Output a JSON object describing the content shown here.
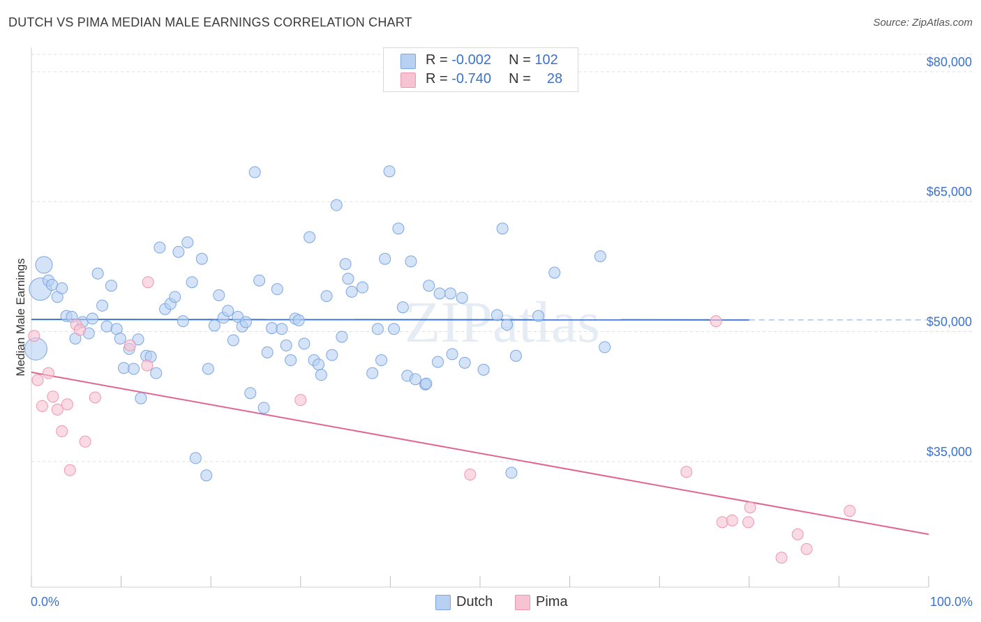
{
  "header": {
    "title": "DUTCH VS PIMA MEDIAN MALE EARNINGS CORRELATION CHART",
    "source": "Source: ZipAtlas.com"
  },
  "legend": {
    "dutch": {
      "r_label": "R =",
      "r_value": "-0.002",
      "n_label": "N =",
      "n_value": "102"
    },
    "pima": {
      "r_label": "R =",
      "r_value": "-0.740",
      "n_label": "N =",
      "n_value": "28"
    }
  },
  "bottom_legend": {
    "dutch": "Dutch",
    "pima": "Pima"
  },
  "watermark": "ZIPatlas",
  "colors": {
    "dutch_fill": "#b8d0f2",
    "dutch_stroke": "#7aa6e3",
    "dutch_line": "#3b72c9",
    "pima_fill": "#f7c3d2",
    "pima_stroke": "#ee95b1",
    "pima_line": "#e0658f",
    "axis_label": "#3b72c9",
    "grid": "#dddddd"
  },
  "chart_data": {
    "type": "scatter",
    "title": "DUTCH VS PIMA MEDIAN MALE EARNINGS CORRELATION CHART",
    "xlabel": "",
    "ylabel": "Median Male Earnings",
    "x_tick_labels": [
      "0.0%",
      "100.0%"
    ],
    "y_tick_labels": [
      "$80,000",
      "$65,000",
      "$50,000",
      "$35,000"
    ],
    "y_ticks": [
      80000,
      65000,
      50000,
      35000
    ],
    "xlim": [
      0,
      100
    ],
    "ylim": [
      20500,
      82000
    ],
    "grid": true,
    "legend_position": "top-center",
    "series": [
      {
        "name": "Dutch",
        "r": -0.002,
        "n": 102,
        "trend": {
          "x": [
            0,
            80
          ],
          "y": [
            51400,
            51350
          ],
          "dashed_extension_to_x": 100
        },
        "points": [
          [
            1.4,
            57700,
            2
          ],
          [
            1.0,
            54900,
            3
          ],
          [
            0.5,
            48000,
            3
          ],
          [
            1.9,
            55900,
            1
          ],
          [
            2.3,
            55400,
            1
          ],
          [
            2.9,
            54000,
            1
          ],
          [
            3.4,
            55000,
            1
          ],
          [
            3.9,
            51800,
            1
          ],
          [
            4.5,
            51700,
            1
          ],
          [
            4.9,
            49200,
            1
          ],
          [
            5.7,
            51100,
            1
          ],
          [
            6.4,
            49800,
            1
          ],
          [
            6.8,
            51500,
            1
          ],
          [
            7.4,
            56700,
            1
          ],
          [
            7.9,
            53000,
            1
          ],
          [
            8.4,
            50600,
            1
          ],
          [
            8.9,
            55300,
            1
          ],
          [
            9.5,
            50300,
            1
          ],
          [
            9.9,
            49200,
            1
          ],
          [
            10.3,
            45800,
            1
          ],
          [
            10.9,
            48000,
            1
          ],
          [
            11.4,
            45700,
            1
          ],
          [
            11.9,
            49100,
            1
          ],
          [
            12.2,
            42300,
            1
          ],
          [
            12.8,
            47200,
            1
          ],
          [
            13.3,
            47100,
            1
          ],
          [
            13.9,
            45200,
            1
          ],
          [
            14.3,
            59700,
            1
          ],
          [
            14.9,
            52600,
            1
          ],
          [
            15.5,
            53200,
            1
          ],
          [
            16.0,
            54000,
            1
          ],
          [
            16.4,
            59200,
            1
          ],
          [
            16.9,
            51200,
            1
          ],
          [
            17.4,
            60300,
            1
          ],
          [
            17.9,
            55700,
            1
          ],
          [
            18.3,
            35400,
            1
          ],
          [
            19.0,
            58400,
            1
          ],
          [
            19.5,
            33400,
            1
          ],
          [
            19.7,
            45700,
            1
          ],
          [
            20.4,
            50700,
            1
          ],
          [
            20.9,
            54200,
            1
          ],
          [
            21.4,
            51600,
            1
          ],
          [
            21.9,
            52400,
            1
          ],
          [
            22.5,
            49000,
            1
          ],
          [
            23.0,
            51700,
            1
          ],
          [
            23.5,
            50600,
            1
          ],
          [
            23.9,
            51100,
            1
          ],
          [
            24.4,
            42900,
            1
          ],
          [
            24.9,
            68400,
            1
          ],
          [
            25.4,
            55900,
            1
          ],
          [
            25.9,
            41200,
            1
          ],
          [
            26.3,
            47600,
            1
          ],
          [
            26.8,
            50400,
            1
          ],
          [
            27.4,
            54900,
            1
          ],
          [
            27.9,
            50300,
            1
          ],
          [
            28.4,
            48400,
            1
          ],
          [
            28.9,
            46700,
            1
          ],
          [
            29.4,
            51500,
            1
          ],
          [
            29.8,
            51300,
            1
          ],
          [
            30.4,
            48600,
            1
          ],
          [
            31.0,
            60900,
            1
          ],
          [
            31.5,
            46700,
            1
          ],
          [
            32.0,
            46200,
            1
          ],
          [
            32.3,
            45000,
            1
          ],
          [
            32.9,
            54100,
            1
          ],
          [
            33.5,
            47300,
            1
          ],
          [
            34.0,
            64600,
            1
          ],
          [
            34.6,
            49400,
            1
          ],
          [
            35.0,
            57800,
            1
          ],
          [
            35.3,
            56100,
            1
          ],
          [
            35.7,
            54600,
            1
          ],
          [
            36.9,
            55100,
            1
          ],
          [
            38.0,
            45200,
            1
          ],
          [
            38.6,
            50300,
            1
          ],
          [
            39.0,
            46700,
            1
          ],
          [
            39.4,
            58400,
            1
          ],
          [
            39.9,
            68500,
            1
          ],
          [
            40.4,
            50300,
            1
          ],
          [
            40.9,
            61900,
            1
          ],
          [
            41.4,
            52800,
            1
          ],
          [
            41.9,
            44900,
            1
          ],
          [
            42.3,
            58100,
            1
          ],
          [
            42.8,
            44500,
            1
          ],
          [
            43.9,
            43900,
            1
          ],
          [
            44.3,
            55300,
            1
          ],
          [
            45.3,
            46500,
            1
          ],
          [
            45.5,
            54400,
            1
          ],
          [
            46.7,
            54400,
            1
          ],
          [
            46.9,
            47400,
            1
          ],
          [
            48.0,
            53900,
            1
          ],
          [
            48.3,
            46400,
            1
          ],
          [
            50.4,
            45600,
            1
          ],
          [
            51.9,
            51900,
            1
          ],
          [
            52.5,
            61900,
            1
          ],
          [
            53.0,
            50800,
            1
          ],
          [
            53.5,
            33700,
            1
          ],
          [
            54.0,
            47200,
            1
          ],
          [
            56.5,
            51800,
            1
          ],
          [
            58.3,
            56800,
            1
          ],
          [
            63.4,
            58700,
            1
          ],
          [
            63.9,
            48200,
            1
          ],
          [
            44.0,
            44000,
            1
          ]
        ]
      },
      {
        "name": "Pima",
        "r": -0.74,
        "n": 28,
        "trend": {
          "x": [
            0,
            100
          ],
          "y": [
            45300,
            26600
          ]
        },
        "points": [
          [
            0.3,
            49500,
            1
          ],
          [
            0.7,
            44400,
            1
          ],
          [
            1.2,
            41400,
            1
          ],
          [
            1.9,
            45200,
            1
          ],
          [
            2.4,
            42500,
            1
          ],
          [
            2.9,
            41000,
            1
          ],
          [
            3.4,
            38500,
            1
          ],
          [
            4.0,
            41600,
            1
          ],
          [
            4.3,
            34000,
            1
          ],
          [
            5.0,
            50800,
            1
          ],
          [
            5.4,
            50200,
            1
          ],
          [
            6.0,
            37300,
            1
          ],
          [
            7.1,
            42400,
            1
          ],
          [
            11.0,
            48400,
            1
          ],
          [
            12.9,
            46100,
            1
          ],
          [
            13.0,
            55700,
            1
          ],
          [
            30.0,
            42100,
            1
          ],
          [
            48.9,
            33500,
            1
          ],
          [
            73.0,
            33800,
            1
          ],
          [
            76.3,
            51200,
            1
          ],
          [
            77.0,
            28000,
            1
          ],
          [
            78.1,
            28200,
            1
          ],
          [
            79.9,
            28000,
            1
          ],
          [
            80.1,
            29700,
            1
          ],
          [
            83.6,
            23900,
            1
          ],
          [
            85.4,
            26600,
            1
          ],
          [
            86.4,
            24900,
            1
          ],
          [
            91.2,
            29300,
            1
          ]
        ]
      }
    ]
  }
}
